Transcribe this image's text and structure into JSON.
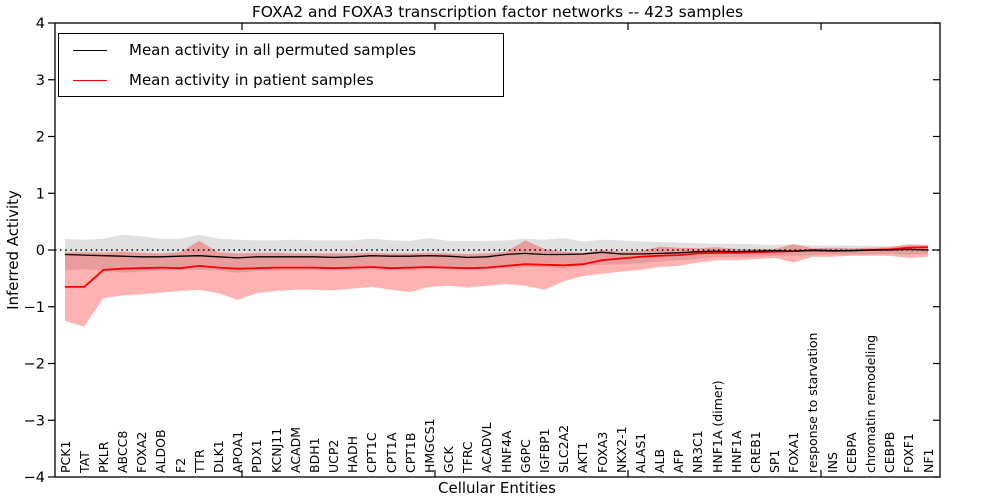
{
  "chart_data": {
    "type": "line",
    "title": "FOXA2 and FOXA3 transcription factor networks -- 423 samples",
    "xlabel": "Cellular Entities",
    "ylabel": "Inferred Activity",
    "ylim": [
      -4,
      4
    ],
    "yticks": [
      4,
      3,
      2,
      1,
      0,
      -1,
      -2,
      -3,
      -4
    ],
    "grid": false,
    "zero_line_style": "dotted",
    "legend_position": "upper left",
    "background_color": "#ffffff",
    "frame_color": "#000000",
    "categories": [
      "PCK1",
      "TAT",
      "PKLR",
      "ABCC8",
      "FOXA2",
      "ALDOB",
      "F2",
      "TTR",
      "DLK1",
      "APOA1",
      "PDX1",
      "KCNJ11",
      "ACADM",
      "BDH1",
      "UCP2",
      "HADH",
      "CPT1C",
      "CPT1A",
      "CPT1B",
      "HMGCS1",
      "GCK",
      "TFRC",
      "ACADVL",
      "HNF4A",
      "G6PC",
      "IGFBP1",
      "SLC2A2",
      "AKT1",
      "FOXA3",
      "NKX2-1",
      "ALAS1",
      "ALB",
      "AFP",
      "NR3C1",
      "HNF1A (dimer)",
      "HNF1A",
      "CREB1",
      "SP1",
      "FOXA1",
      "response to starvation",
      "INS",
      "CEBPA",
      "chromatin remodeling",
      "CEBPB",
      "FOXF1",
      "NF1"
    ],
    "series": [
      {
        "name": "Mean activity in all permuted samples",
        "color": "#000000",
        "line_width": 1.3,
        "band_color": "rgba(64,64,64,0.16)",
        "values": [
          -0.08,
          -0.09,
          -0.1,
          -0.11,
          -0.12,
          -0.12,
          -0.11,
          -0.1,
          -0.12,
          -0.14,
          -0.12,
          -0.12,
          -0.12,
          -0.12,
          -0.13,
          -0.12,
          -0.1,
          -0.11,
          -0.11,
          -0.1,
          -0.11,
          -0.13,
          -0.12,
          -0.08,
          -0.06,
          -0.08,
          -0.08,
          -0.07,
          -0.04,
          -0.07,
          -0.07,
          -0.06,
          -0.05,
          -0.03,
          -0.02,
          -0.03,
          -0.02,
          -0.01,
          -0.02,
          0.0,
          -0.01,
          -0.01,
          0.0,
          0.0,
          0.01,
          0.0
        ],
        "band_upper": [
          0.2,
          0.18,
          0.2,
          0.27,
          0.24,
          0.2,
          0.2,
          0.27,
          0.2,
          0.18,
          0.17,
          0.17,
          0.18,
          0.17,
          0.17,
          0.17,
          0.2,
          0.17,
          0.16,
          0.21,
          0.16,
          0.16,
          0.16,
          0.17,
          0.2,
          0.18,
          0.21,
          0.15,
          0.18,
          0.17,
          0.15,
          0.14,
          0.13,
          0.12,
          0.11,
          0.11,
          0.1,
          0.09,
          0.1,
          0.08,
          0.08,
          0.08,
          0.07,
          0.07,
          0.08,
          0.07
        ],
        "band_lower": [
          -0.36,
          -0.34,
          -0.36,
          -0.4,
          -0.38,
          -0.36,
          -0.35,
          -0.35,
          -0.36,
          -0.4,
          -0.37,
          -0.36,
          -0.36,
          -0.35,
          -0.36,
          -0.35,
          -0.34,
          -0.35,
          -0.35,
          -0.33,
          -0.34,
          -0.35,
          -0.34,
          -0.32,
          -0.3,
          -0.3,
          -0.32,
          -0.28,
          -0.26,
          -0.25,
          -0.23,
          -0.2,
          -0.18,
          -0.15,
          -0.13,
          -0.12,
          -0.12,
          -0.1,
          -0.1,
          -0.09,
          -0.08,
          -0.08,
          -0.08,
          -0.07,
          -0.08,
          -0.07
        ]
      },
      {
        "name": "Mean activity in patient samples",
        "color": "#ff0000",
        "line_width": 1.8,
        "band_color": "rgba(255,0,0,0.30)",
        "values": [
          -0.65,
          -0.65,
          -0.35,
          -0.33,
          -0.32,
          -0.31,
          -0.32,
          -0.28,
          -0.31,
          -0.33,
          -0.32,
          -0.31,
          -0.31,
          -0.31,
          -0.32,
          -0.31,
          -0.3,
          -0.32,
          -0.31,
          -0.3,
          -0.31,
          -0.32,
          -0.31,
          -0.28,
          -0.25,
          -0.26,
          -0.27,
          -0.25,
          -0.18,
          -0.15,
          -0.12,
          -0.1,
          -0.09,
          -0.06,
          -0.05,
          -0.05,
          -0.04,
          -0.03,
          -0.02,
          -0.01,
          -0.02,
          -0.01,
          0.0,
          0.01,
          0.04,
          0.05
        ],
        "band_upper": [
          -0.04,
          -0.04,
          -0.05,
          -0.03,
          -0.05,
          -0.06,
          -0.04,
          0.16,
          -0.04,
          -0.06,
          -0.05,
          -0.05,
          -0.06,
          -0.06,
          -0.06,
          -0.06,
          -0.05,
          -0.06,
          -0.06,
          -0.05,
          -0.06,
          -0.07,
          -0.06,
          -0.03,
          0.17,
          0.02,
          -0.03,
          -0.05,
          0.0,
          -0.03,
          -0.02,
          0.06,
          0.04,
          0.03,
          0.05,
          0.02,
          0.02,
          0.02,
          0.1,
          0.03,
          0.04,
          0.03,
          0.04,
          0.05,
          0.1,
          0.09
        ],
        "band_lower": [
          -1.25,
          -1.35,
          -0.85,
          -0.8,
          -0.78,
          -0.75,
          -0.72,
          -0.7,
          -0.76,
          -0.88,
          -0.76,
          -0.72,
          -0.7,
          -0.7,
          -0.71,
          -0.68,
          -0.65,
          -0.7,
          -0.74,
          -0.65,
          -0.63,
          -0.66,
          -0.63,
          -0.6,
          -0.63,
          -0.7,
          -0.55,
          -0.46,
          -0.42,
          -0.38,
          -0.35,
          -0.3,
          -0.28,
          -0.22,
          -0.18,
          -0.18,
          -0.16,
          -0.14,
          -0.22,
          -0.12,
          -0.12,
          -0.1,
          -0.1,
          -0.1,
          -0.14,
          -0.12
        ]
      }
    ]
  }
}
